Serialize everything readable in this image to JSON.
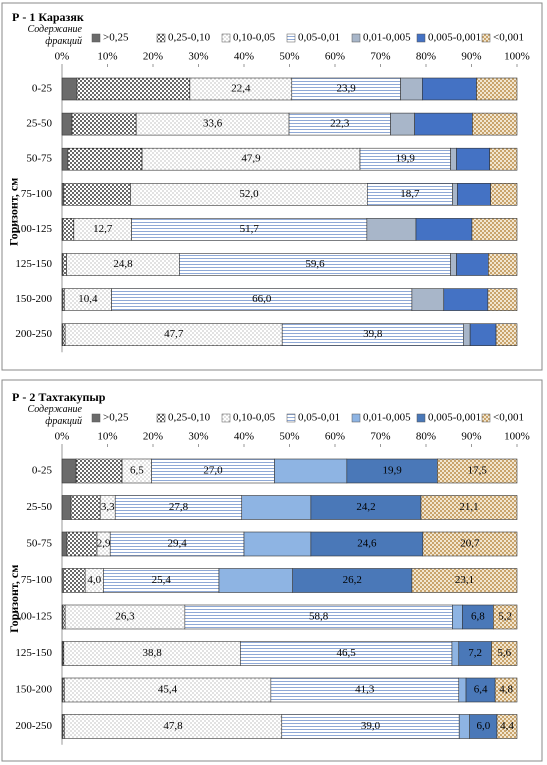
{
  "chart_data": [
    {
      "type": "stacked-bar-horizontal",
      "title": "Р - 1 Каразяк",
      "legend_title": "Содержание фракций",
      "y_label": "Горизонт, см",
      "categories": [
        "0-25",
        "25-50",
        "50-75",
        "75-100",
        "100-125",
        "125-150",
        "150-200",
        "200-250"
      ],
      "xlim": [
        0,
        100
      ],
      "xticks": [
        {
          "value": 0,
          "label": "0%"
        },
        {
          "value": 10,
          "label": "10%"
        },
        {
          "value": 20,
          "label": "20%"
        },
        {
          "value": 30,
          "label": "30%"
        },
        {
          "value": 40,
          "label": "40%"
        },
        {
          "value": 50,
          "label": "50%"
        },
        {
          "value": 60,
          "label": "60%"
        },
        {
          "value": 70,
          "label": "70%"
        },
        {
          "value": 80,
          "label": "80%"
        },
        {
          "value": 90,
          "label": "90%"
        },
        {
          "value": 100,
          "label": "100%"
        }
      ],
      "series": [
        {
          "name": ">0,25",
          "color": "#6b6b6b",
          "pattern": "solid",
          "values": [
            3.3,
            2.2,
            1.3,
            0.4,
            0.2,
            0.2,
            0.2,
            0.2
          ]
        },
        {
          "name": "0,25-0,10",
          "color": "#000000",
          "pattern": "dots",
          "values": [
            24.8,
            14.1,
            16.3,
            14.7,
            2.4,
            0.8,
            0.3,
            0.5
          ]
        },
        {
          "name": "0,10-0,05",
          "color": "#444444",
          "pattern": "finedots",
          "values": [
            22.4,
            33.6,
            47.9,
            52.0,
            12.7,
            24.8,
            10.4,
            47.7
          ],
          "value_labels": [
            "22,4",
            "33,6",
            "47,9",
            "52,0",
            "12,7",
            "24,8",
            "10,4",
            "47,7"
          ]
        },
        {
          "name": "0,05-0,01",
          "color": "#8fa9d6",
          "pattern": "hlines",
          "values": [
            23.9,
            22.3,
            19.9,
            18.7,
            51.7,
            59.6,
            66.0,
            39.8
          ],
          "value_labels": [
            "23,9",
            "22,3",
            "19,9",
            "18,7",
            "51,7",
            "59,6",
            "66,0",
            "39,8"
          ]
        },
        {
          "name": "0,01-0,005",
          "color": "#a8b6c9",
          "pattern": "solid",
          "values": [
            4.8,
            5.3,
            1.3,
            1.1,
            10.8,
            1.3,
            7.0,
            1.5
          ]
        },
        {
          "name": "0,005-0,001",
          "color": "#4472c4",
          "pattern": "solid",
          "values": [
            11.9,
            12.7,
            7.3,
            7.3,
            12.3,
            7.0,
            9.7,
            5.7
          ]
        },
        {
          "name": "<0,001",
          "color": "#c9a46c",
          "pattern": "burlap",
          "values": [
            8.9,
            9.8,
            6.0,
            5.8,
            9.9,
            6.3,
            6.4,
            4.6
          ]
        }
      ]
    },
    {
      "type": "stacked-bar-horizontal",
      "title": "Р - 2 Тахтакупыр",
      "legend_title": "Содержание фракций",
      "y_label": "Горизонт, см",
      "categories": [
        "0-25",
        "25-50",
        "50-75",
        "75-100",
        "100-125",
        "125-150",
        "150-200",
        "200-250"
      ],
      "xlim": [
        0,
        100
      ],
      "xticks": [
        {
          "value": 0,
          "label": "0%"
        },
        {
          "value": 10,
          "label": "10%"
        },
        {
          "value": 20,
          "label": "20%"
        },
        {
          "value": 30,
          "label": "30%"
        },
        {
          "value": 40,
          "label": "40%"
        },
        {
          "value": 50,
          "label": "50%"
        },
        {
          "value": 60,
          "label": "60%"
        },
        {
          "value": 70,
          "label": "70%"
        },
        {
          "value": 80,
          "label": "80%"
        },
        {
          "value": 90,
          "label": "90%"
        },
        {
          "value": 100,
          "label": "100%"
        }
      ],
      "series": [
        {
          "name": ">0,25",
          "color": "#6b6b6b",
          "pattern": "solid",
          "values": [
            3.1,
            2.0,
            1.1,
            0.3,
            0.2,
            0.2,
            0.2,
            0.2
          ]
        },
        {
          "name": "0,25-0,10",
          "color": "#000000",
          "pattern": "dots",
          "values": [
            10.1,
            6.4,
            6.6,
            4.8,
            0.5,
            0.2,
            0.3,
            0.3
          ]
        },
        {
          "name": "0,10-0,05",
          "color": "#444444",
          "pattern": "finedots",
          "values": [
            6.5,
            3.3,
            2.9,
            4.0,
            26.3,
            38.8,
            45.4,
            47.8
          ],
          "value_labels": [
            "6,5",
            "3,3",
            "2,9",
            "4,0",
            "26,3",
            "38,8",
            "45,4",
            "47,8"
          ]
        },
        {
          "name": "0,05-0,01",
          "color": "#8fa9d6",
          "pattern": "hlines",
          "values": [
            27.0,
            27.8,
            29.4,
            25.4,
            58.8,
            46.5,
            41.3,
            39.0
          ],
          "value_labels": [
            "27,0",
            "27,8",
            "29,4",
            "25,4",
            "58,8",
            "46,5",
            "41,3",
            "39,0"
          ]
        },
        {
          "name": "0,01-0,005",
          "color": "#8eb4e3",
          "pattern": "solid",
          "values": [
            15.9,
            15.2,
            14.7,
            16.2,
            2.2,
            1.5,
            1.6,
            2.3
          ]
        },
        {
          "name": "0,005-0,001",
          "color": "#4a78b8",
          "pattern": "solid",
          "values": [
            19.9,
            24.2,
            24.6,
            26.2,
            6.8,
            7.2,
            6.4,
            6.0
          ],
          "value_labels": [
            "19,9",
            "24,2",
            "24,6",
            "26,2",
            "6,8",
            "7,2",
            "6,4",
            "6,0"
          ]
        },
        {
          "name": "<0,001",
          "color": "#c9a46c",
          "pattern": "burlap",
          "values": [
            17.5,
            21.1,
            20.7,
            23.1,
            5.2,
            5.6,
            4.8,
            4.4
          ],
          "value_labels": [
            "17,5",
            "21,1",
            "20,7",
            "23,1",
            "5,2",
            "5,6",
            "4,8",
            "4,4"
          ]
        }
      ]
    }
  ]
}
